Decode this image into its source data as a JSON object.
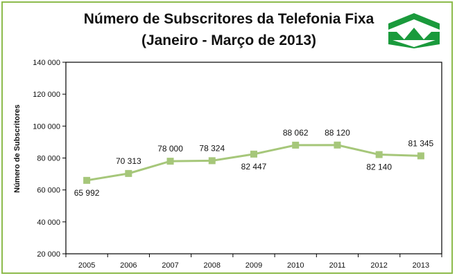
{
  "header": {
    "title_line1": "Número de Subscritores da Telefonia Fixa",
    "title_line2": "(Janeiro - Março de 2013)"
  },
  "colors": {
    "frame_border": "#8dbb4c",
    "series_line": "#a6c77a",
    "marker": "#a6c77a",
    "logo_green": "#1a9a3c"
  },
  "logo": {
    "icon": "regulator-logo-icon"
  },
  "chart_data": {
    "type": "line",
    "title": "",
    "xlabel": "",
    "ylabel": "Número de Subscritores",
    "categories": [
      "2005",
      "2006",
      "2007",
      "2008",
      "2009",
      "2010",
      "2011",
      "2012",
      "2013"
    ],
    "series": [
      {
        "values": [
          65992,
          70313,
          78000,
          78324,
          82447,
          88062,
          88120,
          82140,
          81345
        ],
        "labels": [
          "65 992",
          "70 313",
          "78 000",
          "78 324",
          "82 447",
          "88 062",
          "88 120",
          "82 140",
          "81 345"
        ]
      }
    ],
    "ylim": [
      20000,
      140000
    ],
    "yticks": [
      20000,
      40000,
      60000,
      80000,
      100000,
      120000,
      140000
    ],
    "ytick_labels": [
      "20 000",
      "40 000",
      "60 000",
      "80 000",
      "100 000",
      "120 000",
      "140 000"
    ],
    "label_positions": [
      "below",
      "above",
      "above",
      "above",
      "below",
      "above",
      "above",
      "below",
      "above"
    ],
    "grid": false,
    "legend": "none"
  }
}
